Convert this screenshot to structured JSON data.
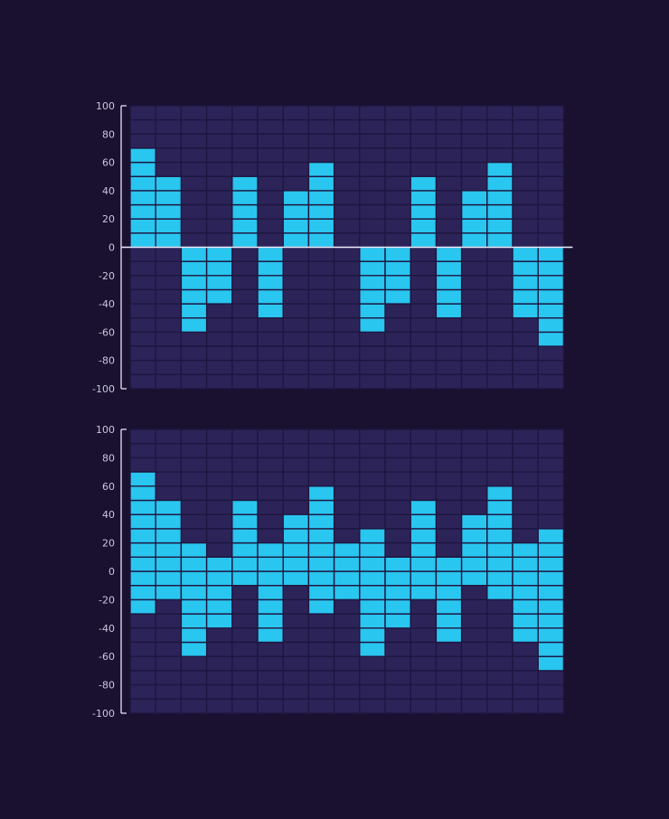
{
  "colors": {
    "background": "#1a1130",
    "cell_empty": "#2c2458",
    "cell_filled": "#29c6f0",
    "cell_border": "#1e1640",
    "axis": "#d6d3e8",
    "zero_line": "#eeeeff",
    "tick_text": "#c9c6dd"
  },
  "chart_data": [
    {
      "type": "bar",
      "ylim": [
        -100,
        100
      ],
      "y_ticks": [
        "100",
        "80",
        "60",
        "40",
        "20",
        "0",
        "-20",
        "-40",
        "-60",
        "-80",
        "-100"
      ],
      "cell_step": 10,
      "grid": true,
      "zero_line": true,
      "values": [
        70,
        50,
        -60,
        -40,
        50,
        -50,
        40,
        60,
        0,
        -60,
        -40,
        50,
        -50,
        40,
        60,
        -50,
        -70
      ]
    },
    {
      "type": "bar",
      "ylim": [
        -100,
        100
      ],
      "y_ticks": [
        "100",
        "80",
        "60",
        "40",
        "20",
        "0",
        "-20",
        "-40",
        "-60",
        "-80",
        "-100"
      ],
      "cell_step": 10,
      "grid": true,
      "zero_line": false,
      "ranges": [
        [
          -30,
          70
        ],
        [
          -20,
          50
        ],
        [
          -60,
          20
        ],
        [
          -40,
          10
        ],
        [
          -10,
          50
        ],
        [
          -50,
          20
        ],
        [
          -10,
          40
        ],
        [
          -30,
          60
        ],
        [
          -20,
          20
        ],
        [
          -60,
          30
        ],
        [
          -40,
          10
        ],
        [
          -20,
          50
        ],
        [
          -50,
          10
        ],
        [
          -10,
          40
        ],
        [
          -20,
          60
        ],
        [
          -50,
          20
        ],
        [
          -70,
          30
        ]
      ]
    }
  ]
}
